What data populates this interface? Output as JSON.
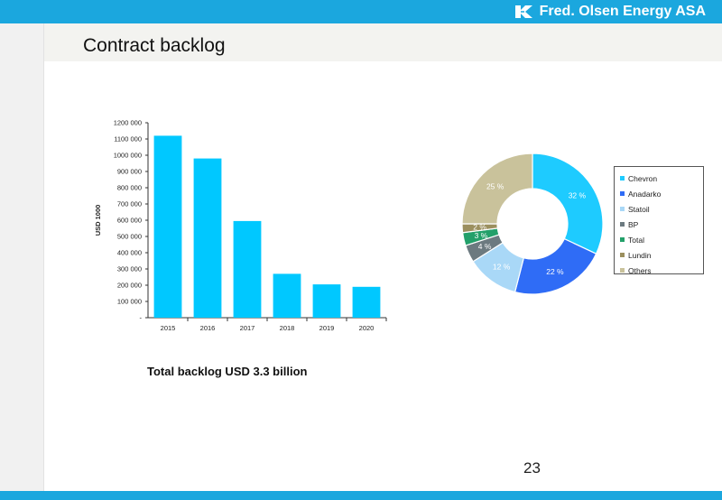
{
  "header": {
    "brand_name": "Fred. Olsen Energy ASA",
    "brand_icon": "fred-olsen-logo-icon",
    "bar_color": "#1ba7de"
  },
  "page": {
    "title": "Contract backlog",
    "caption": "Total backlog USD 3.3 billion",
    "page_number": "23"
  },
  "chart_data": [
    {
      "type": "bar",
      "categories": [
        "2015",
        "2016",
        "2017",
        "2018",
        "2019",
        "2020"
      ],
      "values": [
        1120000,
        980000,
        595000,
        270000,
        205000,
        190000
      ],
      "ylabel": "USD 1000",
      "ylim": [
        0,
        1200000
      ],
      "yticks": [
        "-",
        "100 000",
        "200 000",
        "300 000",
        "400 000",
        "500 000",
        "600 000",
        "700 000",
        "800 000",
        "900 000",
        "1000 000",
        "1100 000",
        "1200 000"
      ],
      "bar_color": "#00c8ff",
      "grid": false
    },
    {
      "type": "pie",
      "style": "donut",
      "slices": [
        {
          "name": "Chevron",
          "value": 32,
          "label": "32 %",
          "color": "#1ecbff"
        },
        {
          "name": "Anadarko",
          "value": 22,
          "label": "22 %",
          "color": "#2f6cf6"
        },
        {
          "name": "Statoil",
          "value": 12,
          "label": "12 %",
          "color": "#a9d8f7"
        },
        {
          "name": "BP",
          "value": 4,
          "label": "4 %",
          "color": "#6c7a80"
        },
        {
          "name": "Total",
          "value": 3,
          "label": "3 %",
          "color": "#23a06a"
        },
        {
          "name": "Lundin",
          "value": 2,
          "label": "2 %",
          "color": "#9b8f5e"
        },
        {
          "name": "Others",
          "value": 25,
          "label": "25 %",
          "color": "#c9c29b"
        }
      ],
      "legend_position": "right"
    }
  ]
}
